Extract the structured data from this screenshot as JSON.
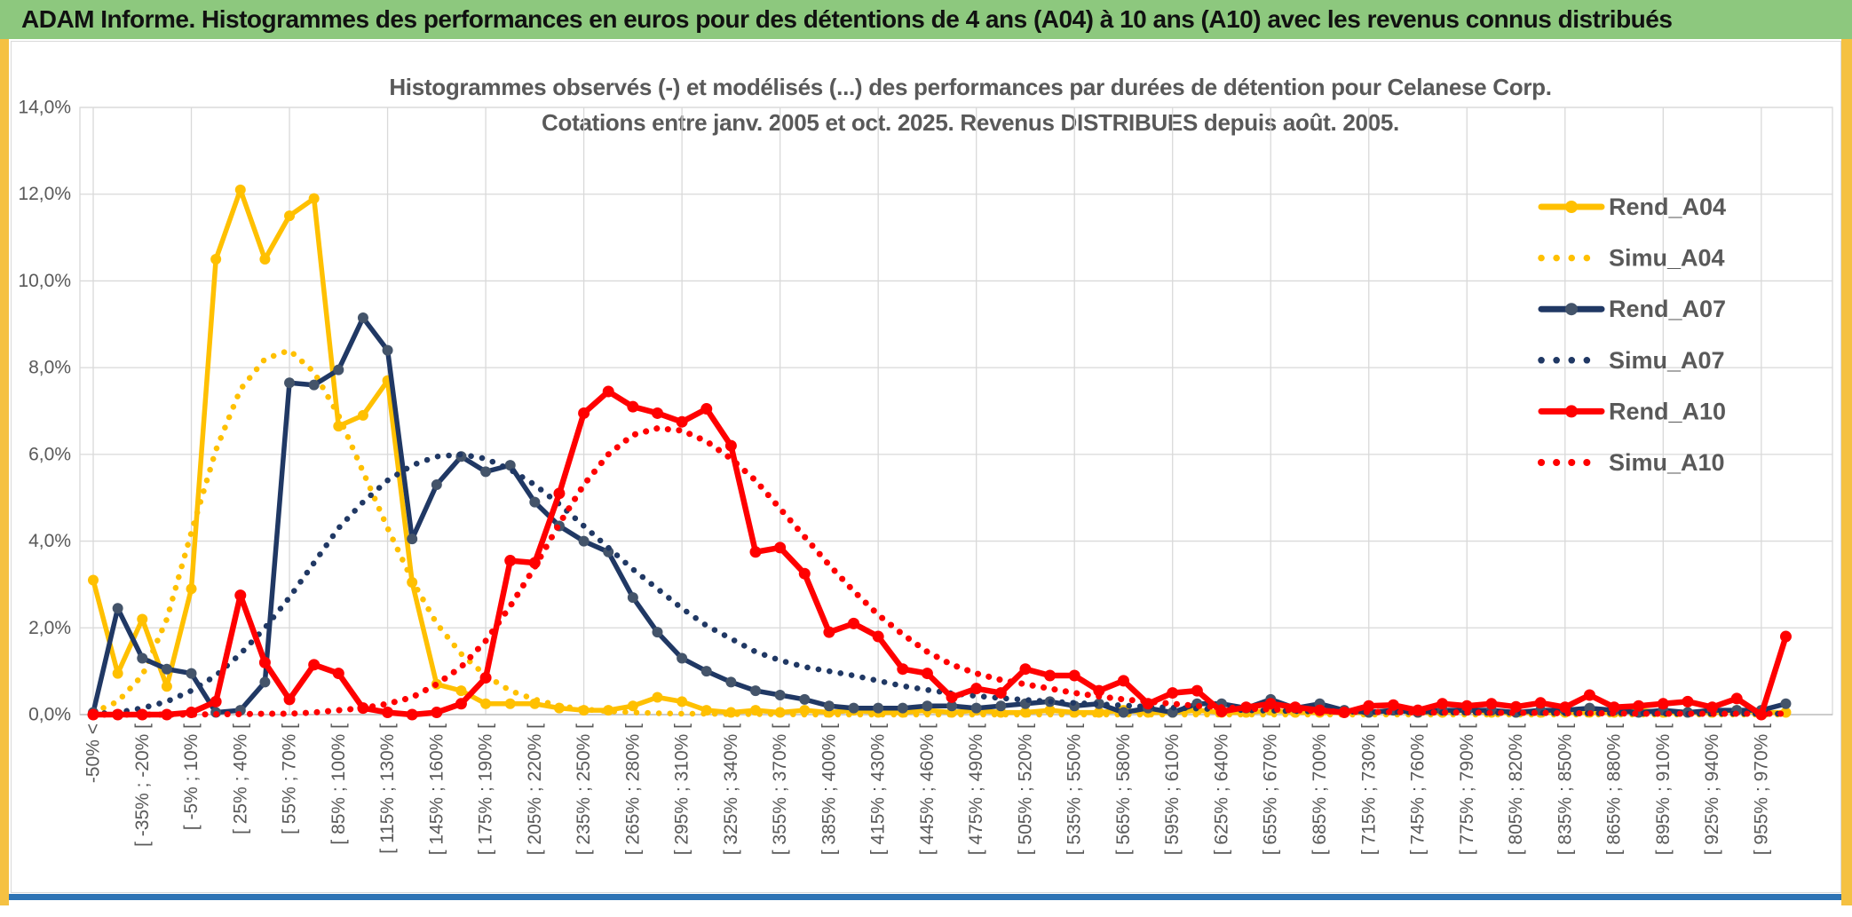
{
  "header": {
    "title": "ADAM Informe. Histogrammes des performances en euros pour des détentions de 4 ans (A04) à 10 ans (A10) avec les revenus connus distribués"
  },
  "chart": {
    "title_line1": "Histogrammes observés (-) et modélisés (...) des performances par durées de détention pour Celanese Corp.",
    "title_line2": "Cotations entre janv. 2005 et oct. 2025. Revenus DISTRIBUES depuis août. 2005.",
    "y_ticks": [
      "0,0%",
      "2,0%",
      "4,0%",
      "6,0%",
      "8,0%",
      "10,0%",
      "12,0%",
      "14,0%"
    ],
    "colors": {
      "gold": "#FFC000",
      "navy": "#203864",
      "navy_marker": "#44546A",
      "red": "#FF0000",
      "grid": "#D9D9D9",
      "axis": "#BFBFBF",
      "text": "#595959",
      "header_green": "#8DC87E",
      "frame_gold": "#F5C142",
      "bottom_blue": "#2E74B5"
    }
  },
  "chart_data": {
    "type": "line",
    "title": "Histogrammes observés (-) et modélisés (...) des performances par durées de détention pour Celanese Corp.",
    "subtitle": "Cotations entre janv. 2005 et oct. 2025. Revenus DISTRIBUES depuis août. 2005.",
    "ylabel": "",
    "xlabel": "",
    "ylim": [
      0,
      14
    ],
    "y_tick_step": 2,
    "grid": true,
    "legend_position": "right",
    "n_bins": 70,
    "label_every_n_bins": 2,
    "categories": [
      "-50% <",
      "[ -35% ; -20% [",
      "[ -5% ; 10% [",
      "[ 25% ; 40% [",
      "[ 55% ; 70% [",
      "[ 85% ; 100% [",
      "[ 115% ; 130% [",
      "[ 145% ; 160% [",
      "[ 175% ; 190% [",
      "[ 205% ; 220% [",
      "[ 235% ; 250% [",
      "[ 265% ; 280% [",
      "[ 295% ; 310% [",
      "[ 325% ; 340% [",
      "[ 355% ; 370% [",
      "[ 385% ; 400% [",
      "[ 415% ; 430% [",
      "[ 445% ; 460% [",
      "[ 475% ; 490% [",
      "[ 505% ; 520% [",
      "[ 535% ; 550% [",
      "[ 565% ; 580% [",
      "[ 595% ; 610% [",
      "[ 625% ; 640% [",
      "[ 655% ; 670% [",
      "[ 685% ; 700% [",
      "[ 715% ; 730% [",
      "[ 745% ; 760% [",
      "[ 775% ; 790% [",
      "[ 805% ; 820% [",
      "[ 835% ; 850% [",
      "[ 865% ; 880% [",
      "[ 895% ; 910% [",
      "[ 925% ; 940% [",
      "[ 955% ; 970% ["
    ],
    "series": [
      {
        "name": "Rend_A04",
        "style": "solid",
        "color": "#FFC000",
        "marker_color": "#FFC000",
        "values": [
          3.1,
          0.95,
          2.2,
          0.65,
          2.9,
          10.5,
          12.1,
          10.5,
          11.5,
          11.9,
          6.65,
          6.9,
          7.7,
          3.05,
          0.7,
          0.55,
          0.25,
          0.25,
          0.25,
          0.15,
          0.1,
          0.1,
          0.2,
          0.4,
          0.3,
          0.1,
          0.05,
          0.1,
          0.05,
          0.1,
          0.05,
          0.1,
          0.05,
          0.05,
          0.1,
          0.05,
          0.1,
          0.05,
          0.05,
          0.1,
          0.05,
          0.05,
          0.1,
          0.05,
          0.05,
          0.1,
          0.05,
          0.05,
          0.1,
          0.05,
          0.05,
          0.05,
          0.05,
          0.1,
          0.05,
          0.05,
          0.1,
          0.05,
          0.05,
          0.05,
          0.05,
          0.05,
          0.05,
          0.1,
          0.05,
          0.05,
          0.05,
          0.1,
          0.05,
          0.05
        ]
      },
      {
        "name": "Simu_A04",
        "style": "dotted",
        "color": "#FFC000",
        "values": [
          0.05,
          0.3,
          0.9,
          2.2,
          4.2,
          6.1,
          7.5,
          8.2,
          8.4,
          7.9,
          6.9,
          5.6,
          4.3,
          3.1,
          2.1,
          1.4,
          0.9,
          0.55,
          0.35,
          0.2,
          0.12,
          0.08,
          0.05,
          0.03,
          0.02,
          0.02,
          0.01,
          0.01,
          0.01,
          0,
          0,
          0,
          0,
          0,
          0,
          0,
          0,
          0,
          0,
          0,
          0,
          0,
          0,
          0,
          0,
          0,
          0,
          0,
          0,
          0,
          0,
          0,
          0,
          0,
          0,
          0,
          0,
          0,
          0,
          0,
          0,
          0,
          0,
          0,
          0,
          0,
          0,
          0,
          0,
          0
        ]
      },
      {
        "name": "Rend_A07",
        "style": "solid",
        "color": "#203864",
        "marker_color": "#44546A",
        "values": [
          0.05,
          2.45,
          1.3,
          1.05,
          0.95,
          0.05,
          0.1,
          0.75,
          7.65,
          7.6,
          7.95,
          9.15,
          8.4,
          4.05,
          5.3,
          5.95,
          5.6,
          5.75,
          4.9,
          4.35,
          4.0,
          3.75,
          2.7,
          1.9,
          1.3,
          1.0,
          0.75,
          0.55,
          0.45,
          0.35,
          0.2,
          0.15,
          0.15,
          0.15,
          0.2,
          0.2,
          0.15,
          0.2,
          0.25,
          0.3,
          0.2,
          0.25,
          0.05,
          0.15,
          0.05,
          0.25,
          0.25,
          0.15,
          0.35,
          0.15,
          0.25,
          0.1,
          0.05,
          0.1,
          0.05,
          0.1,
          0.1,
          0.1,
          0.05,
          0.1,
          0.1,
          0.15,
          0.1,
          0.05,
          0.1,
          0.05,
          0.1,
          0.1,
          0.1,
          0.25
        ]
      },
      {
        "name": "Simu_A07",
        "style": "dotted",
        "color": "#203864",
        "values": [
          0.02,
          0.05,
          0.15,
          0.3,
          0.55,
          0.9,
          1.4,
          2.0,
          2.7,
          3.5,
          4.3,
          4.9,
          5.4,
          5.75,
          5.95,
          6.0,
          5.9,
          5.65,
          5.3,
          4.85,
          4.35,
          3.85,
          3.35,
          2.9,
          2.45,
          2.05,
          1.75,
          1.45,
          1.25,
          1.1,
          1.0,
          0.9,
          0.78,
          0.66,
          0.57,
          0.49,
          0.43,
          0.38,
          0.34,
          0.3,
          0.27,
          0.24,
          0.21,
          0.18,
          0.16,
          0.14,
          0.12,
          0.1,
          0.09,
          0.08,
          0.07,
          0.07,
          0.06,
          0.06,
          0.05,
          0.05,
          0.05,
          0.04,
          0.04,
          0.04,
          0.03,
          0.03,
          0.03,
          0.03,
          0.02,
          0.02,
          0.02,
          0.02,
          0.02,
          0.02
        ]
      },
      {
        "name": "Rend_A10",
        "style": "solid",
        "color": "#FF0000",
        "marker_color": "#FF0000",
        "values": [
          0,
          0,
          0,
          0,
          0.05,
          0.3,
          2.75,
          1.2,
          0.35,
          1.15,
          0.95,
          0.15,
          0.05,
          0,
          0.05,
          0.25,
          0.85,
          3.55,
          3.5,
          5.1,
          6.95,
          7.45,
          7.1,
          6.95,
          6.75,
          7.05,
          6.2,
          3.75,
          3.85,
          3.25,
          1.9,
          2.1,
          1.8,
          1.05,
          0.95,
          0.4,
          0.6,
          0.5,
          1.05,
          0.9,
          0.9,
          0.55,
          0.78,
          0.25,
          0.5,
          0.55,
          0.07,
          0.17,
          0.25,
          0.17,
          0.1,
          0.05,
          0.2,
          0.22,
          0.1,
          0.25,
          0.2,
          0.25,
          0.18,
          0.27,
          0.17,
          0.45,
          0.17,
          0.2,
          0.25,
          0.3,
          0.17,
          0.37,
          0,
          1.8
        ]
      },
      {
        "name": "Simu_A10",
        "style": "dotted",
        "color": "#FF0000",
        "values": [
          0,
          0,
          0,
          0,
          0,
          0.01,
          0.01,
          0.02,
          0.02,
          0.05,
          0.1,
          0.15,
          0.25,
          0.4,
          0.7,
          1.1,
          1.7,
          2.5,
          3.4,
          4.4,
          5.3,
          6.0,
          6.45,
          6.6,
          6.55,
          6.3,
          5.9,
          5.4,
          4.75,
          4.1,
          3.45,
          2.85,
          2.3,
          1.85,
          1.45,
          1.15,
          0.95,
          0.8,
          0.7,
          0.6,
          0.5,
          0.42,
          0.35,
          0.3,
          0.25,
          0.2,
          0.17,
          0.14,
          0.12,
          0.1,
          0.08,
          0.07,
          0.06,
          0.06,
          0.05,
          0.05,
          0.05,
          0.04,
          0.04,
          0.04,
          0.03,
          0.03,
          0.03,
          0.02,
          0.02,
          0.02,
          0.02,
          0.02,
          0.02,
          0.02
        ]
      }
    ]
  }
}
